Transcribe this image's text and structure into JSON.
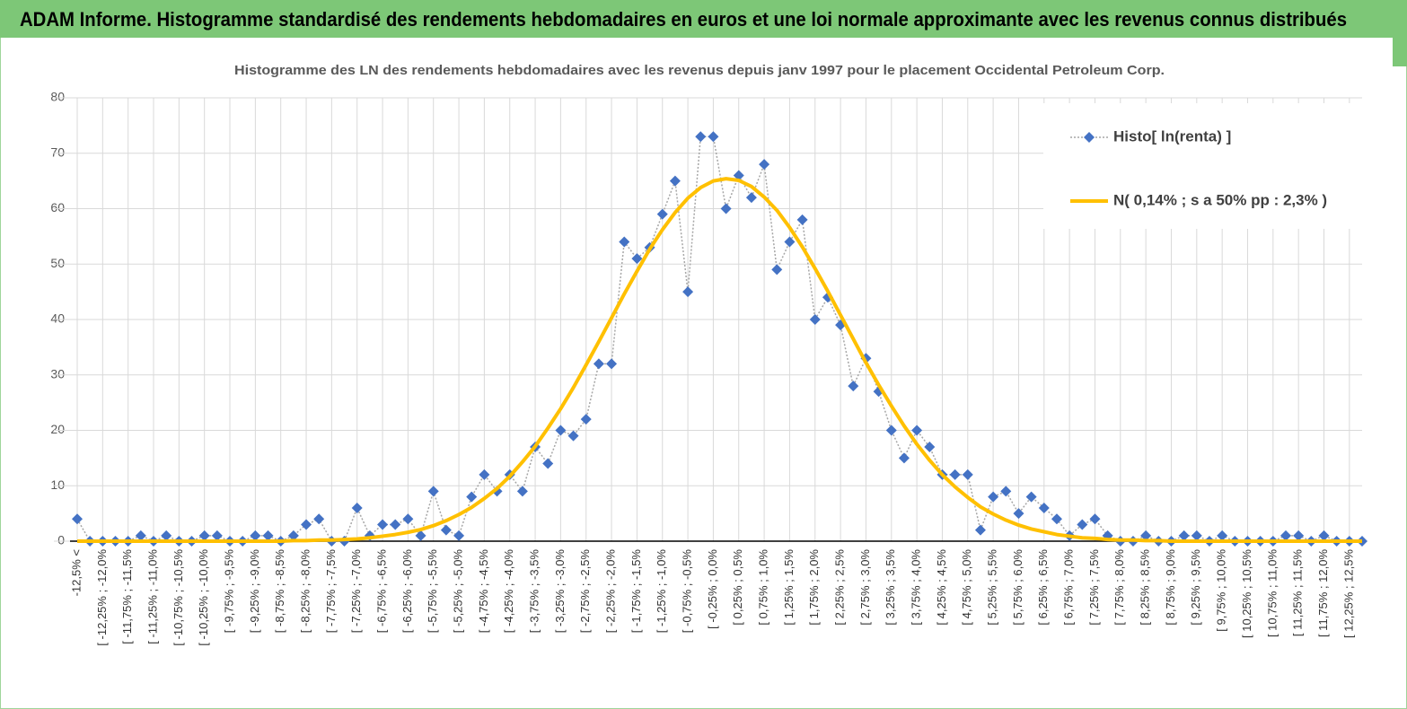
{
  "header": {
    "title": "ADAM Informe. Histogramme standardisé des rendements hebdomadaires en euros et une loi normale approximante avec les revenus connus distribués"
  },
  "chart_data": {
    "type": "line",
    "title": "Histogramme des LN des rendements hebdomadaires avec les revenus depuis janv 1997 pour le placement Occidental Petroleum Corp.",
    "categories": [
      "-12,5% <",
      null,
      "[ -12,25% ; -12,0%",
      null,
      "[ -11,75% ; -11,5%",
      null,
      "[ -11,25% ; -11,0%",
      null,
      "[ -10,75% ; -10,5%",
      null,
      "[ -10,25% ; -10,0%",
      null,
      "[ -9,75% ; -9,5%",
      null,
      "[ -9,25% ; -9,0%",
      null,
      "[ -8,75% ; -8,5%",
      null,
      "[ -8,25% ; -8,0%",
      null,
      "[ -7,75% ; -7,5%",
      null,
      "[ -7,25% ; -7,0%",
      null,
      "[ -6,75% ; -6,5%",
      null,
      "[ -6,25% ; -6,0%",
      null,
      "[ -5,75% ; -5,5%",
      null,
      "[ -5,25% ; -5,0%",
      null,
      "[ -4,75% ; -4,5%",
      null,
      "[ -4,25% ; -4,0%",
      null,
      "[ -3,75% ; -3,5%",
      null,
      "[ -3,25% ; -3,0%",
      null,
      "[ -2,75% ; -2,5%",
      null,
      "[ -2,25% ; -2,0%",
      null,
      "[ -1,75% ; -1,5%",
      null,
      "[ -1,25% ; -1,0%",
      null,
      "[ -0,75% ; -0,5%",
      null,
      "[ -0,25% ; 0,0%",
      null,
      "[ 0,25% ; 0,5%",
      null,
      "[ 0,75% ; 1,0%",
      null,
      "[ 1,25% ; 1,5%",
      null,
      "[ 1,75% ; 2,0%",
      null,
      "[ 2,25% ; 2,5%",
      null,
      "[ 2,75% ; 3,0%",
      null,
      "[ 3,25% ; 3,5%",
      null,
      "[ 3,75% ; 4,0%",
      null,
      "[ 4,25% ; 4,5%",
      null,
      "[ 4,75% ; 5,0%",
      null,
      "[ 5,25% ; 5,5%",
      null,
      "[ 5,75% ; 6,0%",
      null,
      "[ 6,25% ; 6,5%",
      null,
      "[ 6,75% ; 7,0%",
      null,
      "[ 7,25% ; 7,5%",
      null,
      "[ 7,75% ; 8,0%",
      null,
      "[ 8,25% ; 8,5%",
      null,
      "[ 8,75% ; 9,0%",
      null,
      "[ 9,25% ; 9,5%",
      null,
      "[ 9,75% ; 10,0%",
      null,
      "[ 10,25% ; 10,5%",
      null,
      "[ 10,75% ; 11,0%",
      null,
      "[ 11,25% ; 11,5%",
      null,
      "[ 11,75% ; 12,0%",
      null,
      "[ 12,25% ; 12,5%",
      null
    ],
    "series": [
      {
        "name": "Histo[ ln(renta) ]",
        "color": "#4472c4",
        "line_color": "#a6a6a6",
        "marker": "diamond",
        "values": [
          4,
          0,
          0,
          0,
          0,
          1,
          0,
          1,
          0,
          0,
          1,
          1,
          0,
          0,
          1,
          1,
          0,
          1,
          3,
          4,
          0,
          0,
          6,
          1,
          3,
          3,
          4,
          1,
          9,
          2,
          1,
          8,
          12,
          9,
          12,
          9,
          17,
          14,
          20,
          19,
          22,
          32,
          32,
          54,
          51,
          53,
          59,
          65,
          45,
          73,
          73,
          60,
          66,
          62,
          68,
          49,
          54,
          58,
          40,
          44,
          39,
          28,
          33,
          27,
          20,
          15,
          20,
          17,
          12,
          12,
          12,
          2,
          8,
          9,
          5,
          8,
          6,
          4,
          1,
          3,
          4,
          1,
          0,
          0,
          1,
          0,
          0,
          1,
          1,
          0,
          1,
          0,
          0,
          0,
          0,
          1,
          1,
          0,
          1,
          0,
          0,
          0
        ]
      },
      {
        "name": "N( 0,14% ; s a 50% pp : 2,3% )",
        "color": "#ffc000",
        "values": [
          0,
          0,
          0,
          0,
          0,
          0,
          0,
          0,
          0,
          0,
          0,
          0,
          0,
          0,
          0,
          0,
          0,
          0.1,
          0.1,
          0.2,
          0.2,
          0.3,
          0.4,
          0.6,
          0.9,
          1.2,
          1.6,
          2.1,
          2.8,
          3.7,
          4.8,
          6.1,
          7.7,
          9.5,
          11.7,
          14.3,
          17.1,
          20.4,
          23.9,
          27.7,
          31.8,
          36.0,
          40.3,
          44.6,
          48.7,
          52.7,
          56.2,
          59.3,
          61.9,
          63.8,
          65.0,
          65.4,
          65.1,
          64.0,
          62.1,
          59.7,
          56.6,
          53.1,
          49.2,
          45.1,
          40.8,
          36.5,
          32.2,
          28.2,
          24.4,
          20.8,
          17.5,
          14.6,
          12.0,
          9.8,
          7.9,
          6.2,
          4.9,
          3.8,
          2.9,
          2.2,
          1.7,
          1.2,
          0.9,
          0.6,
          0.5,
          0.3,
          0.2,
          0.2,
          0.1,
          0.1,
          0,
          0,
          0,
          0,
          0,
          0,
          0,
          0,
          0,
          0,
          0,
          0,
          0,
          0,
          0,
          0
        ]
      }
    ],
    "ylim": [
      0,
      80
    ],
    "yticks": [
      0,
      10,
      20,
      30,
      40,
      50,
      60,
      70,
      80
    ],
    "grid": true,
    "legend": "upper right"
  }
}
